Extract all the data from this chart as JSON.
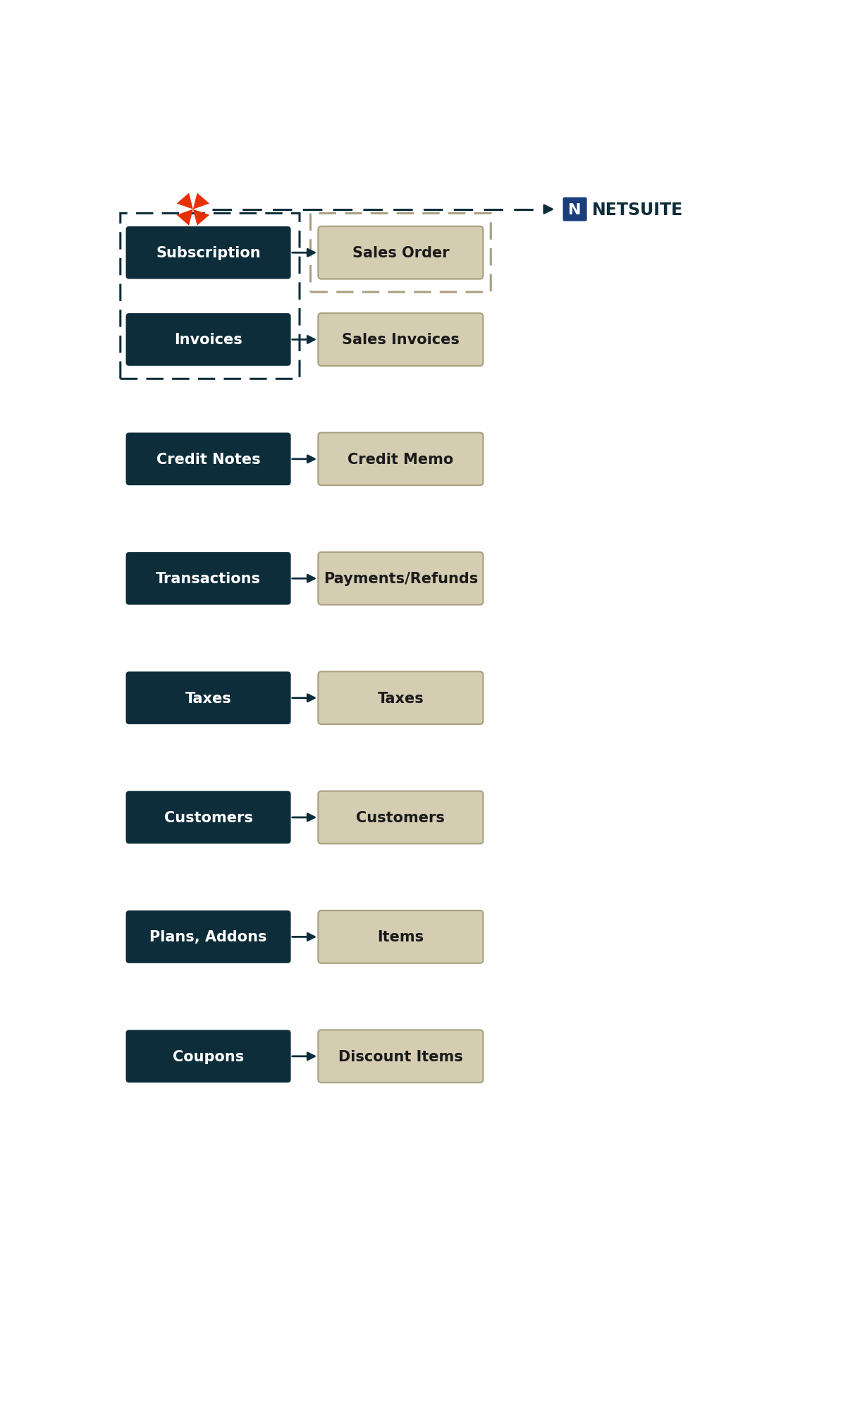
{
  "bg_color": "#ffffff",
  "dark_box_color": "#0d2d3a",
  "light_box_color": "#d4cdb2",
  "light_box_edge": "#a89f7e",
  "arrow_color": "#0d2d3a",
  "dashed_left_color": "#0d2d3a",
  "dashed_right_color": "#a89f7e",
  "text_color_dark": "#ffffff",
  "text_color_light": "#1a1a1a",
  "left_labels": [
    "Subscription",
    "Invoices",
    "Credit Notes",
    "Transactions",
    "Taxes",
    "Customers",
    "Plans, Addons",
    "Coupons"
  ],
  "right_labels": [
    "Sales Order",
    "Sales Invoices",
    "Credit Memo",
    "Payments/Refunds",
    "Taxes",
    "Customers",
    "Items",
    "Discount Items"
  ],
  "netsuite_text": "NETSUITE",
  "pinwheel_color1": "#e63000",
  "pinwheel_color2": "#ff4400",
  "ns_blue": "#1a3d7c",
  "ns_icon_bg": "#1a3d7c"
}
